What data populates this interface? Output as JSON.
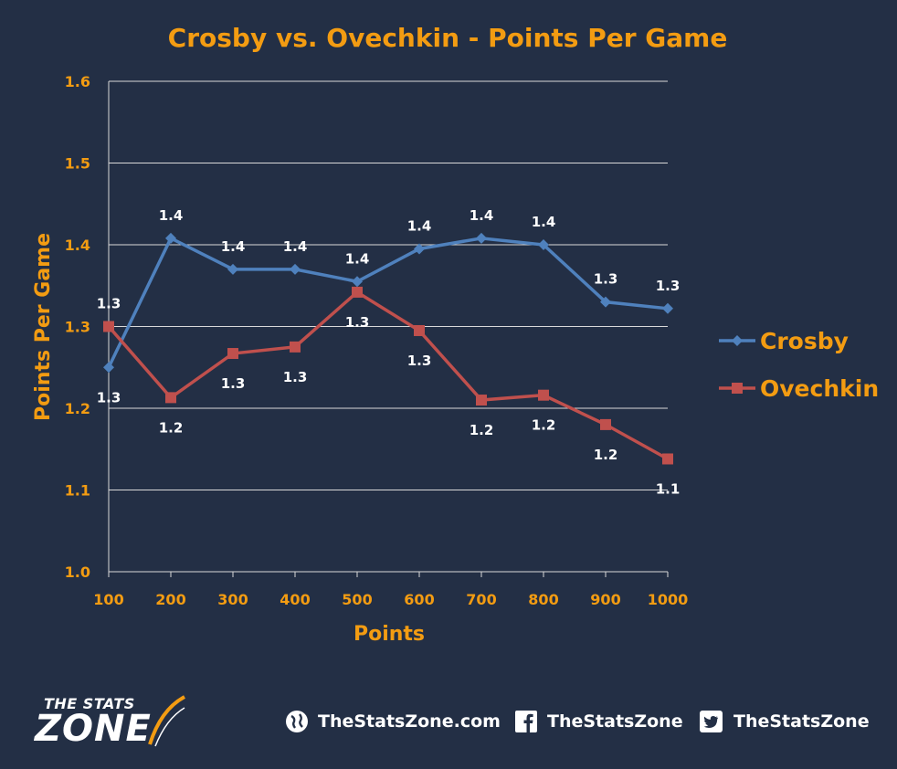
{
  "chart_data": {
    "type": "line",
    "title": "Crosby vs. Ovechkin - Points Per Game",
    "xlabel": "Points",
    "ylabel": "Points Per Game",
    "x": [
      100,
      200,
      300,
      400,
      500,
      600,
      700,
      800,
      900,
      1000
    ],
    "x_tick_labels": [
      "100",
      "200",
      "300",
      "400",
      "500",
      "600",
      "700",
      "800",
      "900",
      "1000"
    ],
    "ylim": [
      1.0,
      1.6
    ],
    "y_ticks": [
      1.0,
      1.1,
      1.2,
      1.3,
      1.4,
      1.5,
      1.6
    ],
    "y_tick_labels": [
      "1.0",
      "1.1",
      "1.2",
      "1.3",
      "1.4",
      "1.5",
      "1.6"
    ],
    "grid": true,
    "legend_position": "right",
    "series": [
      {
        "name": "Crosby",
        "color": "#4f81bd",
        "marker": "diamond",
        "values": [
          1.25,
          1.408,
          1.37,
          1.37,
          1.355,
          1.395,
          1.408,
          1.4,
          1.33,
          1.322
        ],
        "data_labels": [
          "1.3",
          "1.4",
          "1.4",
          "1.4",
          "1.4",
          "1.4",
          "1.4",
          "1.4",
          "1.3",
          "1.3"
        ]
      },
      {
        "name": "Ovechkin",
        "color": "#c0504d",
        "marker": "square",
        "values": [
          1.3,
          1.213,
          1.267,
          1.275,
          1.342,
          1.295,
          1.21,
          1.216,
          1.18,
          1.138
        ],
        "data_labels": [
          "1.3",
          "1.2",
          "1.3",
          "1.3",
          "1.3",
          "1.3",
          "1.2",
          "1.2",
          "1.2",
          "1.1"
        ]
      }
    ]
  },
  "footer": {
    "logo_top": "THE STATS",
    "logo_main": "ZONE",
    "links": [
      {
        "icon": "globe-icon",
        "label": "TheStatsZone.com"
      },
      {
        "icon": "facebook-icon",
        "label": "TheStatsZone"
      },
      {
        "icon": "twitter-icon",
        "label": "TheStatsZone"
      }
    ]
  }
}
